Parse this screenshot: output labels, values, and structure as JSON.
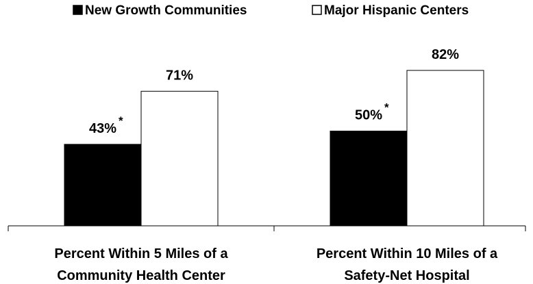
{
  "chart_data": {
    "type": "bar",
    "categories": [
      [
        "Percent Within 5 Miles of a",
        "Community Health Center"
      ],
      [
        "Percent Within 10 Miles of a",
        "Safety-Net Hospital"
      ]
    ],
    "series": [
      {
        "name": "New Growth Communities",
        "values": [
          43,
          50
        ],
        "value_labels": [
          "43%",
          "50%"
        ],
        "markers": [
          "*",
          "*"
        ],
        "color": "#000000"
      },
      {
        "name": "Major Hispanic Centers",
        "values": [
          71,
          82
        ],
        "value_labels": [
          "71%",
          "82%"
        ],
        "markers": [
          "",
          ""
        ],
        "color": "#ffffff"
      }
    ],
    "ylim": [
      0,
      100
    ],
    "legend_position": "top",
    "grid": false
  }
}
